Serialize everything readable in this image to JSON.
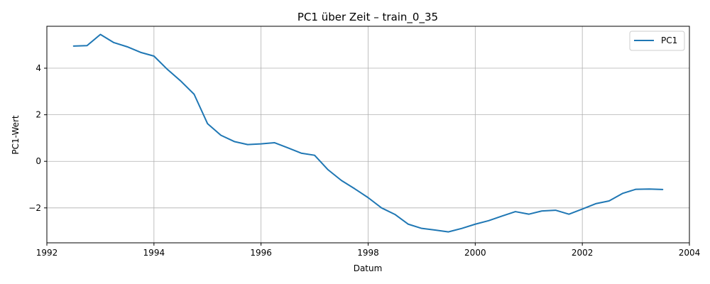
{
  "chart_data": {
    "type": "line",
    "title": "PC1 über Zeit – train_0_35",
    "xlabel": "Datum",
    "ylabel": "PC1-Wert",
    "xlim": [
      1992.0,
      2004.0
    ],
    "ylim": [
      -3.5,
      5.8
    ],
    "xticks": [
      1992,
      1994,
      1996,
      1998,
      2000,
      2002,
      2004
    ],
    "yticks": [
      -2,
      0,
      2,
      4
    ],
    "grid": true,
    "legend": "top-right",
    "series": [
      {
        "name": "PC1",
        "color": "#1f77b4",
        "x": [
          1992.5,
          1992.75,
          1993.0,
          1993.25,
          1993.5,
          1993.75,
          1994.0,
          1994.25,
          1994.5,
          1994.75,
          1995.0,
          1995.25,
          1995.5,
          1995.75,
          1996.0,
          1996.25,
          1996.5,
          1996.75,
          1997.0,
          1997.25,
          1997.5,
          1997.75,
          1998.0,
          1998.25,
          1998.5,
          1998.75,
          1999.0,
          1999.25,
          1999.5,
          1999.75,
          2000.0,
          2000.25,
          2000.5,
          2000.75,
          2001.0,
          2001.25,
          2001.5,
          2001.75,
          2002.0,
          2002.25,
          2002.5,
          2002.75,
          2003.0,
          2003.25,
          2003.5
        ],
        "y": [
          4.95,
          4.97,
          5.45,
          5.1,
          4.92,
          4.68,
          4.52,
          3.95,
          3.45,
          2.88,
          1.62,
          1.12,
          0.85,
          0.72,
          0.75,
          0.8,
          0.58,
          0.35,
          0.26,
          -0.36,
          -0.82,
          -1.18,
          -1.56,
          -2.0,
          -2.28,
          -2.7,
          -2.88,
          -2.95,
          -3.03,
          -2.88,
          -2.7,
          -2.55,
          -2.35,
          -2.16,
          -2.27,
          -2.13,
          -2.1,
          -2.27,
          -2.05,
          -1.82,
          -1.7,
          -1.38,
          -1.2,
          -1.19,
          -1.21
        ]
      }
    ]
  }
}
